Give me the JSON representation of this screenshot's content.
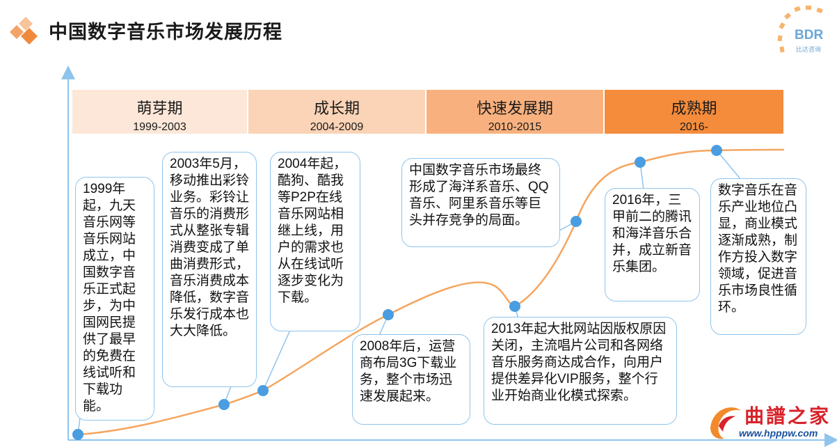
{
  "title": "中国数字音乐市场发展历程",
  "brand": {
    "name": "BDR",
    "subtitle": "比达咨询"
  },
  "watermark": {
    "name": "曲譜之家",
    "url": "www.hpppw.com"
  },
  "phases": [
    {
      "name": "萌芽期",
      "years": "1999-2003",
      "color": "#fde7d8"
    },
    {
      "name": "成长期",
      "years": "2004-2009",
      "color": "#fbd3b6"
    },
    {
      "name": "快速发展期",
      "years": "2010-2015",
      "color": "#f8b17e"
    },
    {
      "name": "成熟期",
      "years": "2016-",
      "color": "#f48c3c"
    }
  ],
  "callouts": [
    {
      "id": "1999",
      "text": "1999年起，九天音乐网等音乐网站成立，中国数字音乐正式起步，为中国网民提供了最早的免费在线试听和下载功能。"
    },
    {
      "id": "2003",
      "text": "2003年5月，移动推出彩铃业务。彩铃让音乐的消费形式从整张专辑消费变成了单曲消费形式，音乐消费成本降低，数字音乐发行成本也大大降低。"
    },
    {
      "id": "2004",
      "text": "2004年起，酷狗、酷我等P2P在线音乐网站相继上线，用户的需求也从在线试听逐步变化为下载。"
    },
    {
      "id": "2008",
      "text": "2008年后，运营商布局3G下载业务，整个市场迅速发展起来。"
    },
    {
      "id": "2013",
      "text": "2013年起大批网站因版权原因关闭，主流唱片公司和各网络音乐服务商达成合作，向用户提供差异化VIP服务，整个行业开始商业化模式探索。"
    },
    {
      "id": "final",
      "text": "中国数字音乐市场最终形成了海洋系音乐、QQ音乐、阿里系音乐等巨头并存竞争的局面。"
    },
    {
      "id": "2016",
      "text": "2016年，三甲前二的腾讯和海洋音乐合并，成立新音乐集团。"
    },
    {
      "id": "position",
      "text": "数字音乐在音乐产业地位凸显，商业模式逐渐成熟，制作方投入数字领域，促进音乐市场良性循环。"
    }
  ],
  "colors": {
    "curve": "#f5a55e",
    "axis": "#8fc4ec",
    "milestone": "#4a9de0",
    "border": "#8fc4ec"
  }
}
